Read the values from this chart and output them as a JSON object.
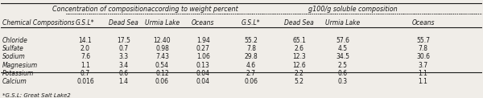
{
  "col_header_row1": [
    "",
    "Concentration of compositionaccording to weight percent",
    "",
    "",
    "",
    "g100/g soluble composition",
    "",
    "",
    ""
  ],
  "col_header_row2": [
    "Chemical Compositions",
    "G.S.L*",
    "Dead Sea",
    "Urmia Lake",
    "Oceans",
    "G.S.L*",
    "Dead Sea",
    "Urmia Lake",
    "Oceans"
  ],
  "rows": [
    [
      "Chloride",
      "14.1",
      "17.5",
      "12.40",
      "1.94",
      "55.2",
      "65.1",
      "57.6",
      "55.7"
    ],
    [
      "Sulfate",
      "2.0",
      "0.7",
      "0.98",
      "0.27",
      "7.8",
      "2.6",
      "4.5",
      "7.8"
    ],
    [
      "Sodium",
      "7.6",
      "3.3",
      "7.43",
      "1.06",
      "29.8",
      "12.3",
      "34.5",
      "30.6"
    ],
    [
      "Magnesium",
      "1.1",
      "3.4",
      "0.54",
      "0.13",
      "4.6",
      "12.6",
      "2.5",
      "3.7"
    ],
    [
      "Potassium",
      "0.7",
      "0.6",
      "0.12",
      "0.04",
      "2.7",
      "2.2",
      "0.6",
      "1.1"
    ],
    [
      "Calcium",
      "0.016",
      "1.4",
      "0.06",
      "0.04",
      "0.06",
      "5.2",
      "0.3",
      "1.1"
    ]
  ],
  "footnote": "*G.S.L: Great Salt Lake2",
  "background_color": "#f0ede8",
  "text_color": "#1a1a1a",
  "header_group1": "Concentration of compositionaccording to weight percent",
  "header_group2": "g100/g soluble composition",
  "figsize": [
    6.0,
    1.22
  ],
  "dpi": 100
}
